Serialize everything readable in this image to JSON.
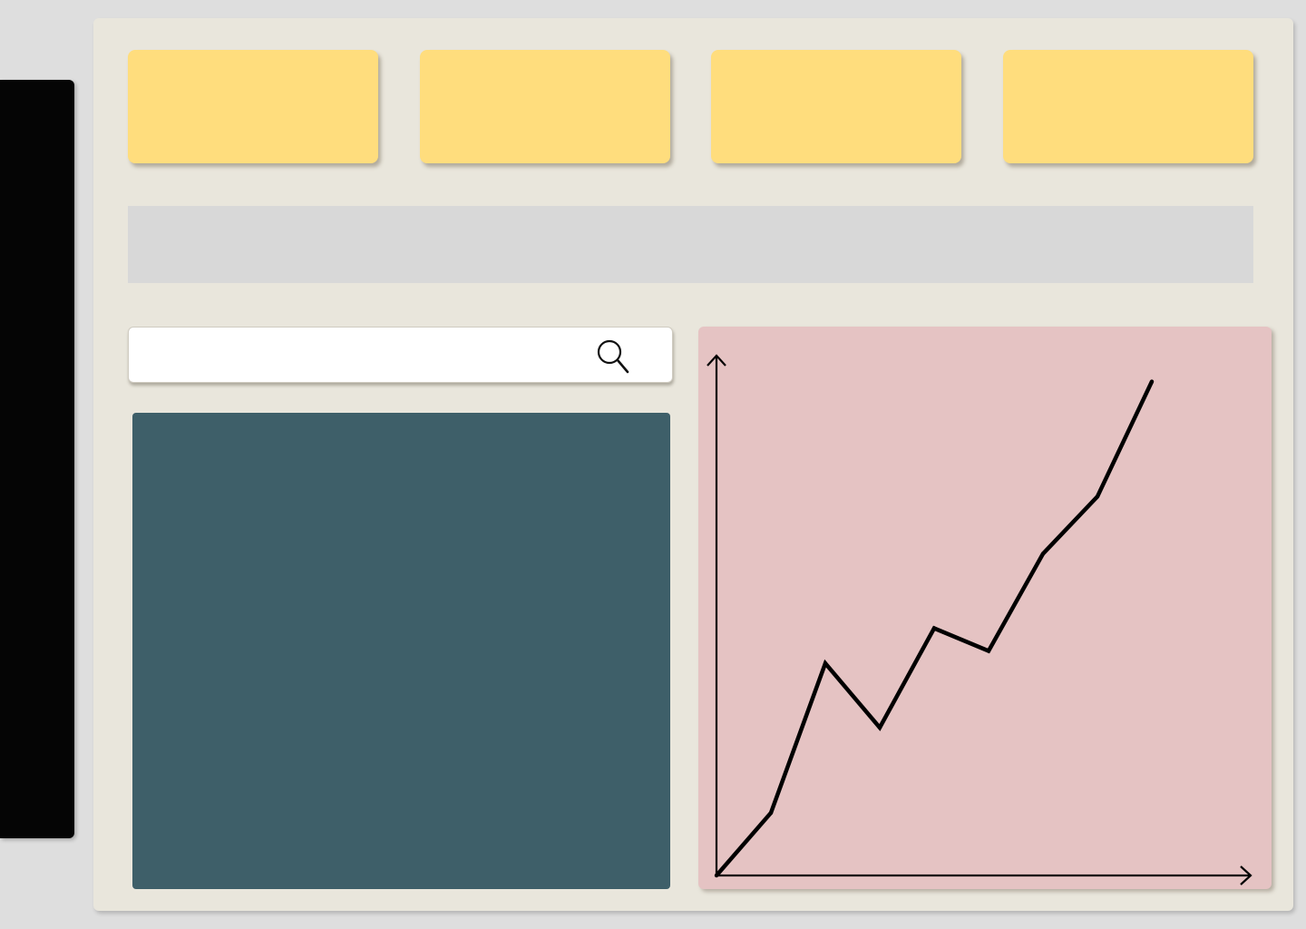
{
  "search": {
    "placeholder": "",
    "value": "",
    "icon": "search-icon"
  },
  "stat_cards": [
    "",
    "",
    "",
    ""
  ],
  "colors": {
    "page_background": "#dedede",
    "sidebar": "#050505",
    "main_panel": "#e9e6dc",
    "stat_card": "#ffdd7d",
    "banner": "#d8d8d8",
    "content_panel": "#3e5f69",
    "chart_panel": "#e5c3c3",
    "chart_line": "#000000"
  },
  "chart_data": {
    "type": "line",
    "title": "",
    "xlabel": "",
    "ylabel": "",
    "grid": false,
    "x": [
      0,
      1,
      2,
      3,
      4,
      5,
      6,
      7,
      8
    ],
    "series": [
      {
        "values": [
          0,
          11.6,
          39.3,
          27.4,
          45.8,
          41.6,
          59.6,
          70.2,
          91.5
        ]
      }
    ],
    "xlim": [
      0,
      10
    ],
    "ylim": [
      0,
      100
    ]
  }
}
